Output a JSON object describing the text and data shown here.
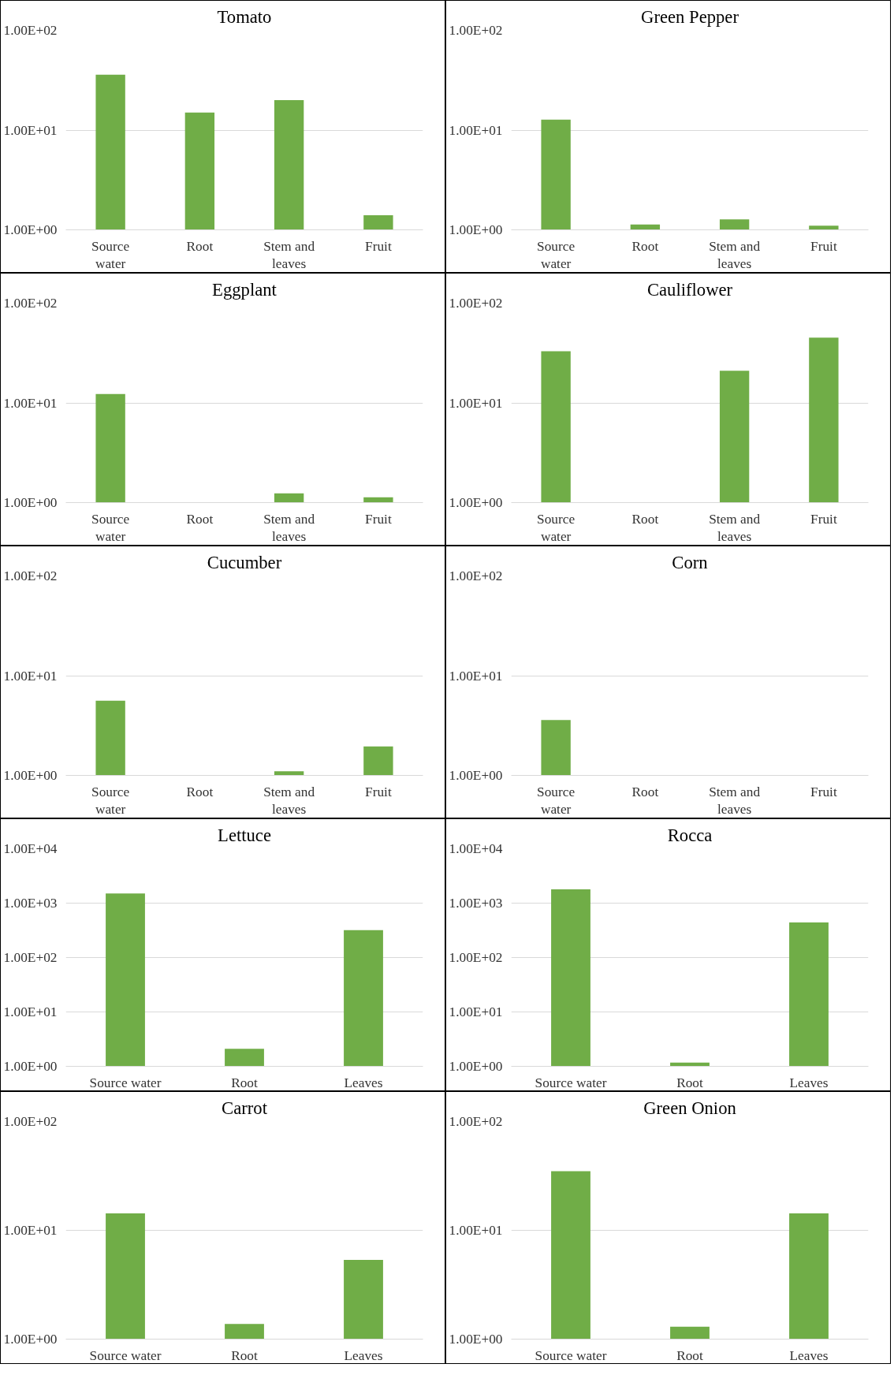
{
  "chart_data": [
    {
      "type": "bar",
      "title": "Tomato",
      "categories": [
        "Source water",
        "Root",
        "Stem and leaves",
        "Fruit"
      ],
      "values": [
        36,
        15,
        20,
        1.4
      ],
      "color": "#70ad47",
      "log": "y",
      "ylim": [
        1,
        100
      ],
      "yticks": [
        {
          "value": 1,
          "label": "1.00E+00"
        },
        {
          "value": 10,
          "label": "1.00E+01"
        },
        {
          "value": 100,
          "label": "1.00E+02"
        }
      ],
      "grid": "y"
    },
    {
      "type": "bar",
      "title": "Green Pepper",
      "categories": [
        "Source water",
        "Root",
        "Stem and leaves",
        "Fruit"
      ],
      "values": [
        12.7,
        1.13,
        1.27,
        1.1
      ],
      "color": "#70ad47",
      "log": "y",
      "ylim": [
        1,
        100
      ],
      "yticks": [
        {
          "value": 1,
          "label": "1.00E+00"
        },
        {
          "value": 10,
          "label": "1.00E+01"
        },
        {
          "value": 100,
          "label": "1.00E+02"
        }
      ],
      "grid": "y"
    },
    {
      "type": "bar",
      "title": "Eggplant",
      "categories": [
        "Source water",
        "Root",
        "Stem and leaves",
        "Fruit"
      ],
      "values": [
        12.3,
        null,
        1.24,
        1.13
      ],
      "color": "#70ad47",
      "log": "y",
      "ylim": [
        1,
        100
      ],
      "yticks": [
        {
          "value": 1,
          "label": "1.00E+00"
        },
        {
          "value": 10,
          "label": "1.00E+01"
        },
        {
          "value": 100,
          "label": "1.00E+02"
        }
      ],
      "grid": "y"
    },
    {
      "type": "bar",
      "title": "Cauliflower",
      "categories": [
        "Source water",
        "Root",
        "Stem and leaves",
        "Fruit"
      ],
      "values": [
        33,
        null,
        21,
        45
      ],
      "color": "#70ad47",
      "log": "y",
      "ylim": [
        1,
        100
      ],
      "yticks": [
        {
          "value": 1,
          "label": "1.00E+00"
        },
        {
          "value": 10,
          "label": "1.00E+01"
        },
        {
          "value": 100,
          "label": "1.00E+02"
        }
      ],
      "grid": "y"
    },
    {
      "type": "bar",
      "title": "Cucumber",
      "categories": [
        "Source water",
        "Root",
        "Stem and leaves",
        "Fruit"
      ],
      "values": [
        5.6,
        null,
        1.1,
        1.95
      ],
      "color": "#70ad47",
      "log": "y",
      "ylim": [
        1,
        100
      ],
      "yticks": [
        {
          "value": 1,
          "label": "1.00E+00"
        },
        {
          "value": 10,
          "label": "1.00E+01"
        },
        {
          "value": 100,
          "label": "1.00E+02"
        }
      ],
      "grid": "y"
    },
    {
      "type": "bar",
      "title": "Corn",
      "categories": [
        "Source water",
        "Root",
        "Stem and leaves",
        "Fruit"
      ],
      "values": [
        3.6,
        null,
        null,
        null
      ],
      "color": "#70ad47",
      "log": "y",
      "ylim": [
        1,
        100
      ],
      "yticks": [
        {
          "value": 1,
          "label": "1.00E+00"
        },
        {
          "value": 10,
          "label": "1.00E+01"
        },
        {
          "value": 100,
          "label": "1.00E+02"
        }
      ],
      "grid": "y"
    },
    {
      "type": "bar",
      "title": "Lettuce",
      "categories": [
        "Source water",
        "Root",
        "Leaves"
      ],
      "values": [
        1500,
        2.1,
        320
      ],
      "color": "#70ad47",
      "log": "y",
      "ylim": [
        1,
        10000
      ],
      "yticks": [
        {
          "value": 1,
          "label": "1.00E+00"
        },
        {
          "value": 10,
          "label": "1.00E+01"
        },
        {
          "value": 100,
          "label": "1.00E+02"
        },
        {
          "value": 1000,
          "label": "1.00E+03"
        },
        {
          "value": 10000,
          "label": "1.00E+04"
        }
      ],
      "grid": "y"
    },
    {
      "type": "bar",
      "title": "Rocca",
      "categories": [
        "Source water",
        "Root",
        "Leaves"
      ],
      "values": [
        1800,
        1.17,
        440
      ],
      "color": "#70ad47",
      "log": "y",
      "ylim": [
        1,
        10000
      ],
      "yticks": [
        {
          "value": 1,
          "label": "1.00E+00"
        },
        {
          "value": 10,
          "label": "1.00E+01"
        },
        {
          "value": 100,
          "label": "1.00E+02"
        },
        {
          "value": 1000,
          "label": "1.00E+03"
        },
        {
          "value": 10000,
          "label": "1.00E+04"
        }
      ],
      "grid": "y"
    },
    {
      "type": "bar",
      "title": "Carrot",
      "categories": [
        "Source water",
        "Root",
        "Leaves"
      ],
      "values": [
        14.3,
        1.38,
        5.35
      ],
      "color": "#70ad47",
      "log": "y",
      "ylim": [
        1,
        100
      ],
      "yticks": [
        {
          "value": 1,
          "label": "1.00E+00"
        },
        {
          "value": 10,
          "label": "1.00E+01"
        },
        {
          "value": 100,
          "label": "1.00E+02"
        }
      ],
      "grid": "y"
    },
    {
      "type": "bar",
      "title": "Green Onion",
      "categories": [
        "Source water",
        "Root",
        "Leaves"
      ],
      "values": [
        35,
        1.3,
        14.3
      ],
      "color": "#70ad47",
      "log": "y",
      "ylim": [
        1,
        100
      ],
      "yticks": [
        {
          "value": 1,
          "label": "1.00E+00"
        },
        {
          "value": 10,
          "label": "1.00E+01"
        },
        {
          "value": 100,
          "label": "1.00E+02"
        }
      ],
      "grid": "y"
    }
  ]
}
